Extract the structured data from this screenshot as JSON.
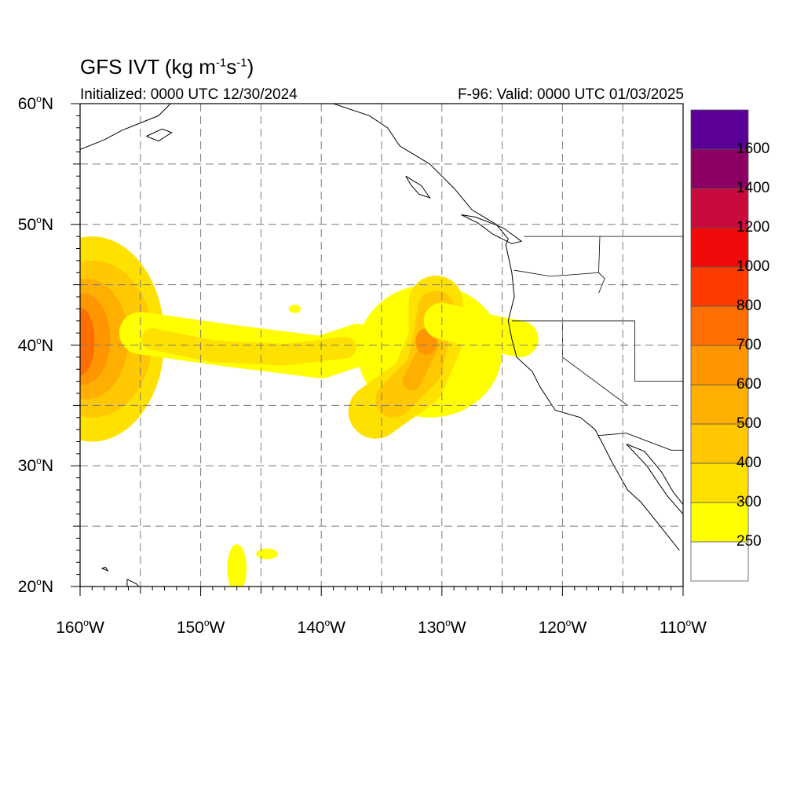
{
  "title": {
    "main": "GFS IVT (kg m",
    "sup1": "-1",
    "mid": "s",
    "sup2": "-1",
    "close": ")"
  },
  "initialized": "Initialized: 0000 UTC 12/30/2024",
  "valid": "F-96: Valid: 0000 UTC 01/03/2025",
  "degree_symbol": "o",
  "map": {
    "lon_range": [
      -160,
      -110
    ],
    "lat_range": [
      20,
      60
    ],
    "lat_ticks": [
      {
        "value": 60,
        "num": "60",
        "hem": "N"
      },
      {
        "value": 50,
        "num": "50",
        "hem": "N"
      },
      {
        "value": 40,
        "num": "40",
        "hem": "N"
      },
      {
        "value": 30,
        "num": "30",
        "hem": "N"
      },
      {
        "value": 20,
        "num": "20",
        "hem": "N"
      }
    ],
    "lon_ticks": [
      {
        "value": -160,
        "num": "160",
        "hem": "W"
      },
      {
        "value": -150,
        "num": "150",
        "hem": "W"
      },
      {
        "value": -140,
        "num": "140",
        "hem": "W"
      },
      {
        "value": -130,
        "num": "130",
        "hem": "W"
      },
      {
        "value": -120,
        "num": "120",
        "hem": "W"
      },
      {
        "value": -110,
        "num": "110",
        "hem": "W"
      }
    ],
    "gridlines": "dashed, every 5 degrees"
  },
  "colorbar": {
    "levels": [
      "250",
      "300",
      "400",
      "500",
      "600",
      "700",
      "800",
      "1000",
      "1200",
      "1400",
      "1600"
    ],
    "colors": [
      "#ffffff",
      "#ffff00",
      "#ffe100",
      "#ffc800",
      "#ffaf00",
      "#ff9600",
      "#ff6e00",
      "#ff3c00",
      "#f00a0a",
      "#c80a3c",
      "#8c0064",
      "#5a0096"
    ]
  },
  "chart_data": {
    "type": "heatmap",
    "variable": "Integrated water vapor transport (IVT), kg m-1 s-1",
    "features": [
      {
        "shape": "ellipse",
        "lon": -159,
        "lat": 40.5,
        "rx_deg": 6,
        "ry_deg": 8.5,
        "ivt": 300
      },
      {
        "shape": "ellipse",
        "lon": -159,
        "lat": 40.5,
        "rx_deg": 5,
        "ry_deg": 6.5,
        "ivt": 400
      },
      {
        "shape": "ellipse",
        "lon": -159.5,
        "lat": 40.5,
        "rx_deg": 3.5,
        "ry_deg": 5,
        "ivt": 500
      },
      {
        "shape": "ellipse",
        "lon": -159.8,
        "lat": 40.5,
        "rx_deg": 2.3,
        "ry_deg": 3.8,
        "ivt": 600
      },
      {
        "shape": "ellipse",
        "lon": -160,
        "lat": 40.3,
        "rx_deg": 1.2,
        "ry_deg": 2.8,
        "ivt": 700
      },
      {
        "shape": "band",
        "points": [
          [
            -155,
            41
          ],
          [
            -148,
            40
          ],
          [
            -144,
            39.5
          ],
          [
            -140,
            39
          ],
          [
            -137,
            40
          ]
        ],
        "width_deg": 3.5,
        "ivt": 250
      },
      {
        "shape": "band",
        "points": [
          [
            -154,
            40.5
          ],
          [
            -149,
            39.5
          ],
          [
            -143,
            39.2
          ],
          [
            -138,
            39.8
          ]
        ],
        "width_deg": 1.8,
        "ivt": 300
      },
      {
        "shape": "ellipse",
        "lon": -131,
        "lat": 39.5,
        "rx_deg": 6,
        "ry_deg": 5.5,
        "ivt": 250
      },
      {
        "shape": "band",
        "points": [
          [
            -135.5,
            34.5
          ],
          [
            -132,
            37
          ],
          [
            -130.5,
            40.5
          ],
          [
            -130.5,
            43.5
          ]
        ],
        "width_deg": 4.5,
        "ivt": 300
      },
      {
        "shape": "band",
        "points": [
          [
            -134,
            35.5
          ],
          [
            -131.5,
            38
          ],
          [
            -130.8,
            41
          ],
          [
            -130.5,
            43
          ]
        ],
        "width_deg": 3,
        "ivt": 400
      },
      {
        "shape": "band",
        "points": [
          [
            -132.5,
            37
          ],
          [
            -131,
            40
          ]
        ],
        "width_deg": 1.5,
        "ivt": 500
      },
      {
        "shape": "ellipse",
        "lon": -131.3,
        "lat": 40.3,
        "rx_deg": 0.9,
        "ry_deg": 1.1,
        "ivt": 600
      },
      {
        "shape": "band",
        "points": [
          [
            -130,
            42
          ],
          [
            -126,
            41
          ],
          [
            -123.5,
            40.5
          ]
        ],
        "width_deg": 3,
        "ivt": 250
      },
      {
        "shape": "ellipse",
        "lon": -147,
        "lat": 21.5,
        "rx_deg": 0.8,
        "ry_deg": 2,
        "ivt": 250
      },
      {
        "shape": "ellipse",
        "lon": -144.5,
        "lat": 22.7,
        "rx_deg": 0.9,
        "ry_deg": 0.45,
        "ivt": 250
      },
      {
        "shape": "ellipse",
        "lon": -142.2,
        "lat": 43,
        "rx_deg": 0.5,
        "ry_deg": 0.35,
        "ivt": 250
      }
    ]
  }
}
